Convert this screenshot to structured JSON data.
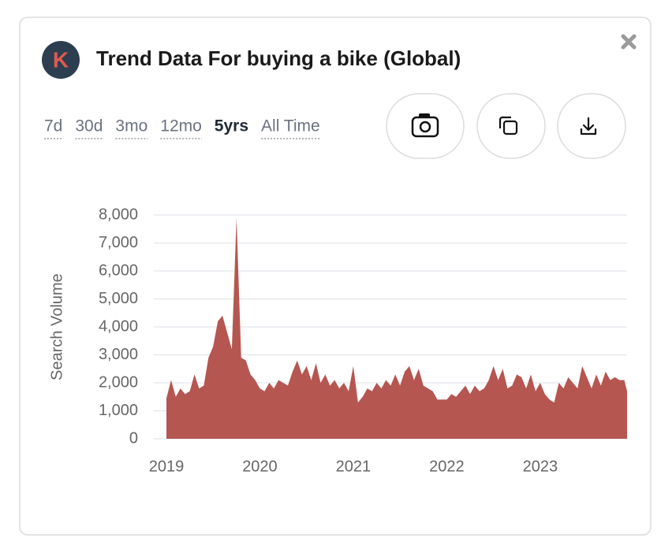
{
  "header": {
    "logo_letter": "K",
    "title": "Trend Data For buying a bike (Global)"
  },
  "tabs": [
    "7d",
    "30d",
    "3mo",
    "12mo",
    "5yrs",
    "All Time"
  ],
  "active_tab": 4,
  "chart_data": {
    "type": "area",
    "y_label": "Search Volume",
    "color": "#b55651",
    "grid": true,
    "xlim": [
      2018.865,
      2023.93
    ],
    "xticks": [
      2019,
      2020,
      2021,
      2022,
      2023
    ],
    "ylim": [
      0,
      8000
    ],
    "yticks": [
      0,
      {
        "value": 1000,
        "label": "1,000"
      },
      {
        "value": 2000,
        "label": "2,000"
      },
      {
        "value": 3000,
        "label": "3,000"
      },
      {
        "value": 4000,
        "label": "4,000"
      },
      {
        "value": 5000,
        "label": "5,000"
      },
      {
        "value": 6000,
        "label": "6,000"
      },
      {
        "value": 7000,
        "label": "7,000"
      },
      {
        "value": 8000,
        "label": "8,000"
      }
    ],
    "x": [
      2019.0,
      2019.05,
      2019.1,
      2019.15,
      2019.2,
      2019.25,
      2019.3,
      2019.35,
      2019.4,
      2019.45,
      2019.5,
      2019.55,
      2019.6,
      2019.65,
      2019.7,
      2019.75,
      2019.8,
      2019.85,
      2019.9,
      2019.95,
      2020.0,
      2020.05,
      2020.1,
      2020.15,
      2020.2,
      2020.25,
      2020.3,
      2020.35,
      2020.4,
      2020.45,
      2020.5,
      2020.55,
      2020.6,
      2020.65,
      2020.7,
      2020.75,
      2020.8,
      2020.85,
      2020.9,
      2020.95,
      2021.0,
      2021.05,
      2021.1,
      2021.15,
      2021.2,
      2021.25,
      2021.3,
      2021.35,
      2021.4,
      2021.45,
      2021.5,
      2021.55,
      2021.6,
      2021.65,
      2021.7,
      2021.75,
      2021.8,
      2021.85,
      2021.9,
      2021.95,
      2022.0,
      2022.05,
      2022.1,
      2022.15,
      2022.2,
      2022.25,
      2022.3,
      2022.35,
      2022.4,
      2022.45,
      2022.5,
      2022.55,
      2022.6,
      2022.65,
      2022.7,
      2022.75,
      2022.8,
      2022.85,
      2022.9,
      2022.95,
      2023.0,
      2023.05,
      2023.1,
      2023.15,
      2023.2,
      2023.25,
      2023.3,
      2023.35,
      2023.4,
      2023.45,
      2023.5,
      2023.55,
      2023.6,
      2023.65,
      2023.7,
      2023.75,
      2023.8,
      2023.85,
      2023.9,
      2023.93
    ],
    "values": [
      1450,
      2100,
      1500,
      1800,
      1600,
      1700,
      2300,
      1800,
      1900,
      2900,
      3300,
      4200,
      4400,
      3800,
      3200,
      7900,
      2900,
      2800,
      2300,
      2100,
      1800,
      1700,
      2000,
      1800,
      2100,
      2000,
      1900,
      2400,
      2800,
      2300,
      2600,
      2100,
      2700,
      2000,
      2300,
      1900,
      2100,
      1800,
      2000,
      1700,
      2600,
      1300,
      1500,
      1800,
      1700,
      2000,
      1800,
      2100,
      1900,
      2300,
      1900,
      2400,
      2600,
      2100,
      2500,
      1900,
      1800,
      1700,
      1400,
      1400,
      1400,
      1600,
      1500,
      1700,
      1900,
      1600,
      1900,
      1700,
      1800,
      2100,
      2600,
      2100,
      2500,
      1800,
      1900,
      2300,
      2200,
      1800,
      2300,
      1700,
      2000,
      1600,
      1400,
      1300,
      2000,
      1800,
      2200,
      2000,
      1800,
      2600,
      2200,
      1800,
      2300,
      1900,
      2400,
      2100,
      2200,
      2100,
      2100,
      1700
    ]
  }
}
